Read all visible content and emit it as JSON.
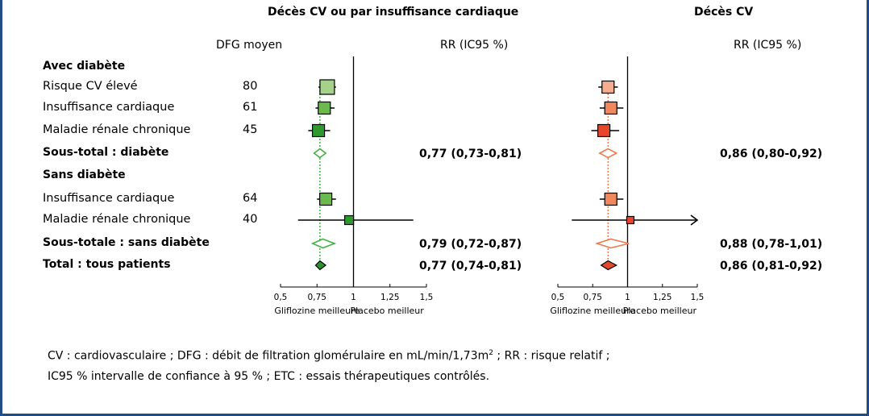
{
  "header": {
    "dfg_label": "DFG moyen",
    "rr_label_left": "RR (IC95 %)",
    "rr_label_right": "RR (IC95 %)"
  },
  "rows": [
    {
      "label": "Avec diabète",
      "kind": "section"
    },
    {
      "label": "Risque CV élevé",
      "kind": "item",
      "dfg": "80"
    },
    {
      "label": "Insuffisance cardiaque",
      "kind": "item",
      "dfg": "61"
    },
    {
      "label": "Maladie rénale chronique",
      "kind": "item",
      "dfg": "45"
    },
    {
      "label": "Sous-total : diabète",
      "kind": "subtotal"
    },
    {
      "label": "Sans diabète",
      "kind": "section"
    },
    {
      "label": "Insuffisance cardiaque",
      "kind": "item",
      "dfg": "64"
    },
    {
      "label": "Maladie rénale chronique",
      "kind": "item",
      "dfg": "40"
    },
    {
      "label": "Sous-totale : sans diabète",
      "kind": "subtotal"
    },
    {
      "label": "Total : tous patients",
      "kind": "total"
    }
  ],
  "footnote": {
    "line1_pre": "CV : cardiovasculaire ; DFG : débit de filtration glomérulaire en mL/min/1,73m",
    "line1_sup": "2",
    "line1_post": " ; RR : risque relatif ;",
    "line2": "IC95 % intervalle de confiance à 95 % ; ETC : essais thérapeutiques contrôlés."
  },
  "chart_data": [
    {
      "type": "forest",
      "title": "Décès CV ou par insuffisance cardiaque",
      "xlim": [
        0.5,
        1.5
      ],
      "ticks": [
        0.5,
        0.75,
        1,
        1.25,
        1.5
      ],
      "tick_labels": [
        "0,5",
        "0,75",
        "1",
        "1,25",
        "1,5"
      ],
      "reference": 1,
      "favours_left": "Gliflozine meilleure",
      "favours_right": "Placebo meilleur",
      "colors": {
        "light": "#a6d18a",
        "medium": "#6cba4e",
        "dark": "#2e9a2e",
        "diamond": "#2e8f2e",
        "line": "#43b043"
      },
      "points": [
        {
          "row": 1,
          "type": "square",
          "est": 0.82,
          "lo": 0.76,
          "hi": 0.88,
          "shade": "light",
          "size": 18
        },
        {
          "row": 2,
          "type": "square",
          "est": 0.8,
          "lo": 0.74,
          "hi": 0.87,
          "shade": "medium",
          "size": 15
        },
        {
          "row": 3,
          "type": "square",
          "est": 0.76,
          "lo": 0.69,
          "hi": 0.84,
          "shade": "dark",
          "size": 15
        },
        {
          "row": 4,
          "type": "diamond",
          "est": 0.77,
          "lo": 0.73,
          "hi": 0.81,
          "filled": false,
          "label": "0,77 (0,73-0,81)"
        },
        {
          "row": 6,
          "type": "square",
          "est": 0.81,
          "lo": 0.75,
          "hi": 0.88,
          "shade": "medium",
          "size": 15
        },
        {
          "row": 7,
          "type": "square",
          "est": 0.97,
          "lo": 0.62,
          "hi": 1.41,
          "shade": "dark",
          "size": 11
        },
        {
          "row": 8,
          "type": "diamond",
          "est": 0.79,
          "lo": 0.72,
          "hi": 0.87,
          "filled": false,
          "label": "0,79 (0,72-0,87)"
        },
        {
          "row": 9,
          "type": "diamond",
          "est": 0.77,
          "lo": 0.74,
          "hi": 0.81,
          "filled": true,
          "label": "0,77 (0,74-0,81)"
        }
      ]
    },
    {
      "type": "forest",
      "title": "Décès CV",
      "xlim": [
        0.5,
        1.5
      ],
      "ticks": [
        0.5,
        0.75,
        1,
        1.25,
        1.5
      ],
      "tick_labels": [
        "0,5",
        "0,75",
        "1",
        "1,25",
        "1,5"
      ],
      "reference": 1,
      "favours_left": "Gliflozine meilleure",
      "favours_right": "Placebo meilleur",
      "colors": {
        "light": "#f4ad8e",
        "medium": "#f0875d",
        "dark": "#e8452a",
        "diamond": "#e04a2a",
        "line": "#ee7a52"
      },
      "points": [
        {
          "row": 1,
          "type": "square",
          "est": 0.86,
          "lo": 0.79,
          "hi": 0.93,
          "shade": "light",
          "size": 15
        },
        {
          "row": 2,
          "type": "square",
          "est": 0.88,
          "lo": 0.8,
          "hi": 0.97,
          "shade": "medium",
          "size": 15
        },
        {
          "row": 3,
          "type": "square",
          "est": 0.83,
          "lo": 0.74,
          "hi": 0.94,
          "shade": "dark",
          "size": 15
        },
        {
          "row": 4,
          "type": "diamond",
          "est": 0.86,
          "lo": 0.8,
          "hi": 0.92,
          "filled": false,
          "label": "0,86 (0,80-0,92)"
        },
        {
          "row": 6,
          "type": "square",
          "est": 0.88,
          "lo": 0.8,
          "hi": 0.97,
          "shade": "medium",
          "size": 15
        },
        {
          "row": 7,
          "type": "square",
          "est": 1.02,
          "lo": 0.6,
          "hi": 1.5,
          "shade": "dark",
          "size": 9,
          "arrow": true
        },
        {
          "row": 8,
          "type": "diamond",
          "est": 0.88,
          "lo": 0.78,
          "hi": 1.01,
          "filled": false,
          "label": "0,88 (0,78-1,01)"
        },
        {
          "row": 9,
          "type": "diamond",
          "est": 0.86,
          "lo": 0.81,
          "hi": 0.92,
          "filled": true,
          "label": "0,86 (0,81-0,92)"
        }
      ]
    }
  ]
}
